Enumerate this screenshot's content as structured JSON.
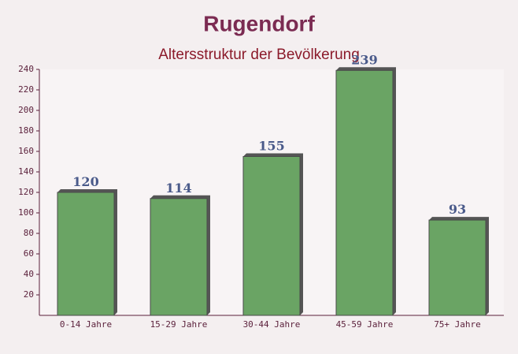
{
  "chart_data": {
    "type": "bar",
    "title": "Rugendorf",
    "subtitle": "Altersstruktur der Bevölkerung",
    "categories": [
      "0-14 Jahre",
      "15-29 Jahre",
      "30-44 Jahre",
      "45-59 Jahre",
      "75+ Jahre"
    ],
    "values": [
      120,
      114,
      155,
      239,
      93
    ],
    "color": "#6aa464",
    "ylim": [
      0,
      240
    ],
    "yticks": [
      20,
      40,
      60,
      80,
      100,
      120,
      140,
      160,
      180,
      200,
      220,
      240
    ]
  }
}
